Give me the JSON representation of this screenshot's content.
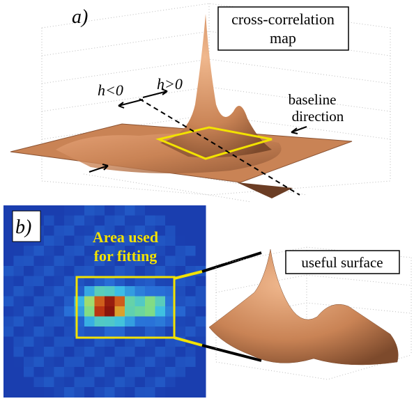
{
  "panel_a": {
    "label": "a)",
    "map_label": [
      "cross-correlation",
      "map"
    ],
    "h_negative": "h<0",
    "h_positive": "h>0",
    "baseline_label": [
      "baseline",
      "direction"
    ]
  },
  "panel_b": {
    "label": "b)",
    "area_label": [
      "Area used",
      "for fitting"
    ],
    "surface_label": "useful surface"
  }
}
